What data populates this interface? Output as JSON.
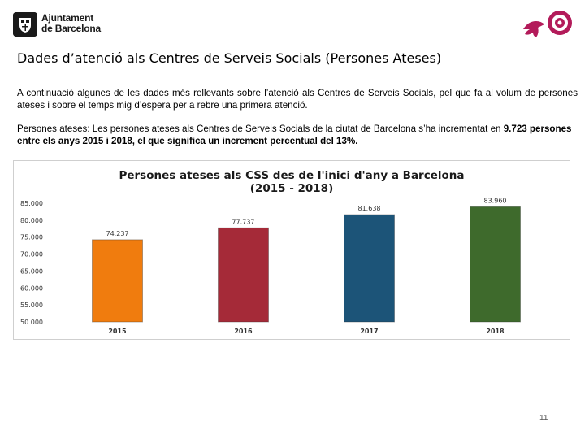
{
  "header": {
    "logo_line1": "Ajuntament",
    "logo_line2": "de Barcelona"
  },
  "title": "Dades d’atenció als Centres de Serveis Socials (Persones Ateses)",
  "intro": "A continuació algunes de les dades més rellevants sobre l’atenció als Centres de Serveis Socials, pel que fa al volum de persones ateses i sobre el temps mig d’espera per a rebre una primera atenció.",
  "persons": {
    "label": "Persones ateses",
    "text1": ": Les persones ateses als Centres de Serveis Socials de la ciutat de Barcelona s’ha incrementat en ",
    "bold1": "9.723 persones entre els anys 2015 i 2018, el que significa un increment percentual del 13%."
  },
  "chart_data": {
    "type": "bar",
    "title_line1": "Persones ateses als CSS des de l'inici d'any a Barcelona",
    "title_line2": "(2015 - 2018)",
    "categories": [
      "2015",
      "2016",
      "2017",
      "2018"
    ],
    "values": [
      74237,
      77737,
      81638,
      83960
    ],
    "value_labels": [
      "74.237",
      "77.737",
      "81.638",
      "83.960"
    ],
    "colors": [
      "#f07c0e",
      "#a52a38",
      "#1c5478",
      "#3e6a2c"
    ],
    "ylim": [
      50000,
      85000
    ],
    "yticks": [
      50000,
      55000,
      60000,
      65000,
      70000,
      75000,
      80000,
      85000
    ],
    "ytick_labels": [
      "50.000",
      "55.000",
      "60.000",
      "65.000",
      "70.000",
      "75.000",
      "80.000",
      "85.000"
    ],
    "xlabel": "",
    "ylabel": ""
  },
  "page_number": "11"
}
